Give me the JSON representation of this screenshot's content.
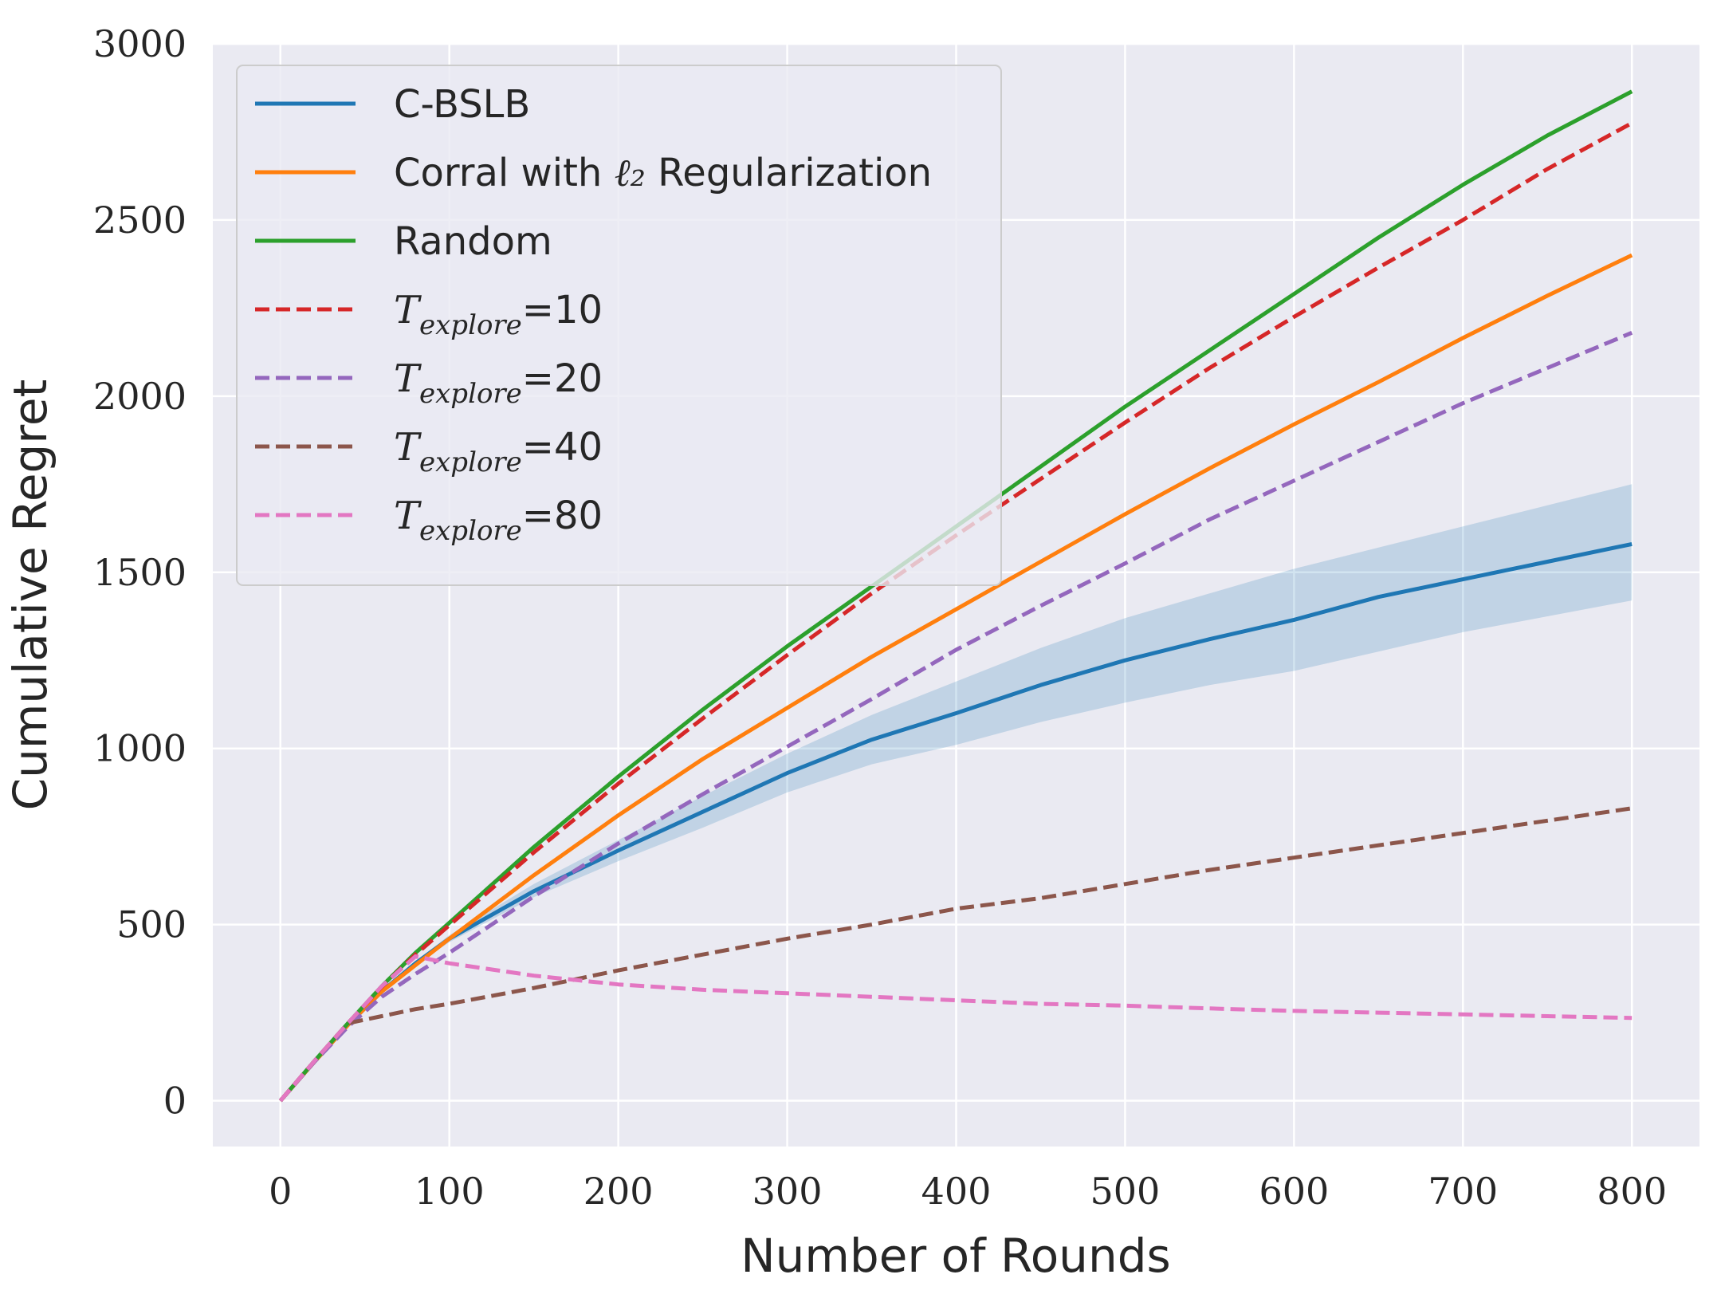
{
  "chart_data": {
    "type": "line",
    "title": "",
    "xlabel": "Number of Rounds",
    "ylabel": "Cumulative Regret",
    "xlim": [
      -40,
      840
    ],
    "ylim": [
      -130,
      3000
    ],
    "xticks": [
      0,
      100,
      200,
      300,
      400,
      500,
      600,
      700,
      800
    ],
    "yticks": [
      0,
      500,
      1000,
      1500,
      2000,
      2500,
      3000
    ],
    "grid": true,
    "legend_position": "top-left",
    "x": [
      0,
      20,
      40,
      60,
      80,
      100,
      150,
      200,
      250,
      300,
      350,
      400,
      450,
      500,
      550,
      600,
      650,
      700,
      750,
      800
    ],
    "series": [
      {
        "name": "C-BSLB",
        "legend_label": "C-BSLB",
        "color": "#1f77b4",
        "style": "solid",
        "values": [
          0,
          110,
          215,
          310,
          390,
          460,
          595,
          710,
          820,
          930,
          1025,
          1100,
          1180,
          1250,
          1310,
          1365,
          1430,
          1480,
          1530,
          1580
        ],
        "band_upper": [
          0,
          110,
          215,
          312,
          395,
          470,
          615,
          740,
          865,
          985,
          1095,
          1190,
          1285,
          1370,
          1440,
          1510,
          1570,
          1630,
          1690,
          1750
        ],
        "band_lower": [
          0,
          110,
          215,
          308,
          385,
          450,
          578,
          680,
          775,
          875,
          955,
          1010,
          1075,
          1130,
          1180,
          1220,
          1275,
          1330,
          1375,
          1420
        ]
      },
      {
        "name": "Corral with l2 Regularization",
        "legend_label": "Corral with",
        "legend_math": "ℓ₂",
        "legend_suffix": "Regularization",
        "color": "#ff7f0e",
        "style": "solid",
        "values": [
          0,
          110,
          215,
          310,
          385,
          460,
          640,
          810,
          970,
          1115,
          1260,
          1395,
          1530,
          1665,
          1795,
          1920,
          2040,
          2165,
          2285,
          2400
        ]
      },
      {
        "name": "Random",
        "legend_label": "Random",
        "color": "#2ca02c",
        "style": "solid",
        "values": [
          0,
          112,
          220,
          325,
          420,
          505,
          720,
          920,
          1110,
          1290,
          1460,
          1630,
          1800,
          1970,
          2130,
          2290,
          2450,
          2600,
          2740,
          2865
        ]
      },
      {
        "name": "T_explore=10",
        "legend_math": "T",
        "legend_sub": "explore",
        "legend_value": "=10",
        "color": "#d62728",
        "style": "dashed",
        "values": [
          0,
          112,
          220,
          323,
          415,
          498,
          705,
          900,
          1085,
          1265,
          1440,
          1605,
          1765,
          1925,
          2080,
          2225,
          2365,
          2500,
          2645,
          2775
        ]
      },
      {
        "name": "T_explore=20",
        "legend_math": "T",
        "legend_sub": "explore",
        "legend_value": "=20",
        "color": "#9467bd",
        "style": "dashed",
        "values": [
          0,
          110,
          210,
          295,
          360,
          420,
          580,
          730,
          870,
          1005,
          1140,
          1280,
          1405,
          1525,
          1650,
          1760,
          1870,
          1980,
          2080,
          2180
        ]
      },
      {
        "name": "T_explore=40",
        "legend_math": "T",
        "legend_sub": "explore",
        "legend_value": "=40",
        "color": "#8c564b",
        "style": "dashed",
        "values": [
          0,
          112,
          220,
          240,
          260,
          275,
          320,
          370,
          415,
          460,
          500,
          545,
          575,
          615,
          655,
          690,
          725,
          760,
          795,
          830
        ]
      },
      {
        "name": "T_explore=80",
        "legend_math": "T",
        "legend_sub": "explore",
        "legend_value": "=80",
        "color": "#e377c2",
        "style": "dashed",
        "values": [
          0,
          112,
          220,
          325,
          410,
          390,
          355,
          330,
          315,
          305,
          295,
          285,
          275,
          270,
          262,
          255,
          250,
          245,
          240,
          235
        ]
      }
    ]
  }
}
